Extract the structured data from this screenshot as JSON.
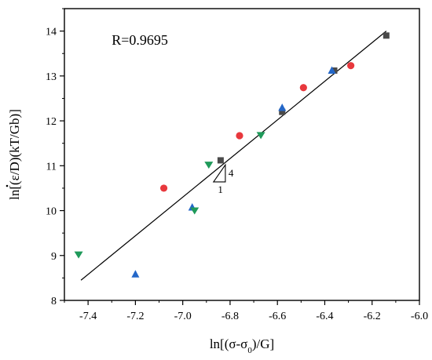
{
  "chart_data": {
    "type": "scatter",
    "title": "",
    "xlabel_parts": [
      "ln[(σ-σ",
      "0",
      ")/G]"
    ],
    "ylabel_parts": [
      "ln[(",
      "ε",
      "/D)(kT/Gb)]"
    ],
    "xlim": [
      -7.5,
      -6.0
    ],
    "ylim": [
      8,
      14.5
    ],
    "x_ticks": [
      -7.4,
      -7.2,
      -7.0,
      -6.8,
      -6.6,
      -6.4,
      -6.2,
      -6.0
    ],
    "x_tick_labels": [
      "-7.4",
      "-7.2",
      "-7.0",
      "-6.8",
      "-6.6",
      "-6.4",
      "-6.2",
      "-6.0"
    ],
    "y_ticks": [
      8,
      9,
      10,
      11,
      12,
      13,
      14
    ],
    "y_tick_labels": [
      "8",
      "9",
      "10",
      "11",
      "12",
      "13",
      "14"
    ],
    "grid": false,
    "annotation_r": "R=0.9695",
    "slope_triangle": {
      "rise_label": "4",
      "run_label": "1",
      "x_range": [
        -6.92,
        -6.88
      ],
      "y_range": [
        10.6,
        10.97
      ]
    },
    "fit_line": {
      "x": [
        -7.43,
        -6.14
      ],
      "y": [
        8.45,
        14.0
      ],
      "color": "#000000"
    },
    "series": [
      {
        "marker": "square",
        "color": "#4a4a4a",
        "points": [
          {
            "x": -6.84,
            "y": 11.12
          },
          {
            "x": -6.58,
            "y": 12.2
          },
          {
            "x": -6.36,
            "y": 13.12
          },
          {
            "x": -6.14,
            "y": 13.9
          }
        ]
      },
      {
        "marker": "circle",
        "color": "#e8383d",
        "points": [
          {
            "x": -7.08,
            "y": 10.5
          },
          {
            "x": -6.76,
            "y": 11.67
          },
          {
            "x": -6.49,
            "y": 12.74
          },
          {
            "x": -6.29,
            "y": 13.23
          }
        ]
      },
      {
        "marker": "triangle-up",
        "color": "#2467c8",
        "points": [
          {
            "x": -7.2,
            "y": 8.58
          },
          {
            "x": -6.96,
            "y": 10.07
          },
          {
            "x": -6.58,
            "y": 12.29
          },
          {
            "x": -6.37,
            "y": 13.12
          }
        ]
      },
      {
        "marker": "triangle-down",
        "color": "#1f9a5a",
        "points": [
          {
            "x": -7.44,
            "y": 9.02
          },
          {
            "x": -6.95,
            "y": 10.0
          },
          {
            "x": -6.89,
            "y": 11.02
          },
          {
            "x": -6.67,
            "y": 11.68
          }
        ]
      }
    ]
  }
}
